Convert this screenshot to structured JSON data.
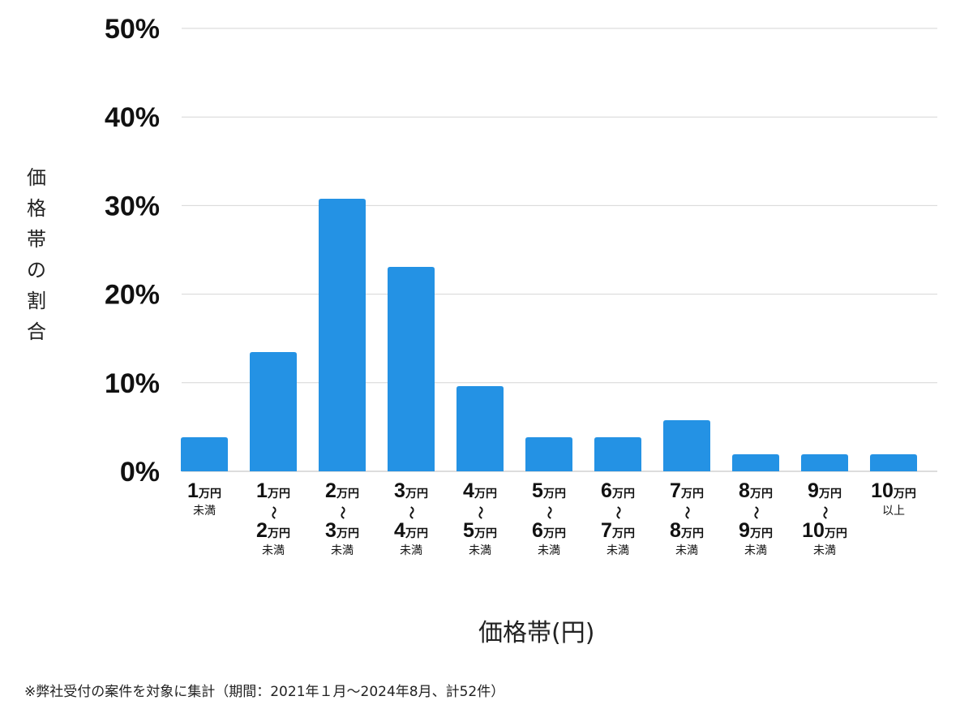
{
  "chart_data": {
    "type": "bar",
    "title": "",
    "xlabel": "価格帯(円)",
    "ylabel": "価格帯の割合",
    "ylim": [
      0,
      50
    ],
    "yticks": [
      "0%",
      "10%",
      "20%",
      "30%",
      "40%",
      "50%"
    ],
    "grid": true,
    "bar_color": "#2492e4",
    "unit": "万円",
    "tilde": "〜",
    "categories": [
      {
        "top": "1",
        "bottom": "",
        "note": "未満"
      },
      {
        "top": "1",
        "bottom": "2",
        "note": "未満"
      },
      {
        "top": "2",
        "bottom": "3",
        "note": "未満"
      },
      {
        "top": "3",
        "bottom": "4",
        "note": "未満"
      },
      {
        "top": "4",
        "bottom": "5",
        "note": "未満"
      },
      {
        "top": "5",
        "bottom": "6",
        "note": "未満"
      },
      {
        "top": "6",
        "bottom": "7",
        "note": "未満"
      },
      {
        "top": "7",
        "bottom": "8",
        "note": "未満"
      },
      {
        "top": "8",
        "bottom": "9",
        "note": "未満"
      },
      {
        "top": "9",
        "bottom": "10",
        "note": "未満"
      },
      {
        "top": "10",
        "bottom": "",
        "note": "以上"
      }
    ],
    "values": [
      3.85,
      13.46,
      30.77,
      23.08,
      9.62,
      3.85,
      3.85,
      5.77,
      1.92,
      1.92,
      1.92
    ]
  },
  "footnote": "※弊社受付の案件を対象に集計（期間：2021年１月〜2024年8月、計52件）"
}
